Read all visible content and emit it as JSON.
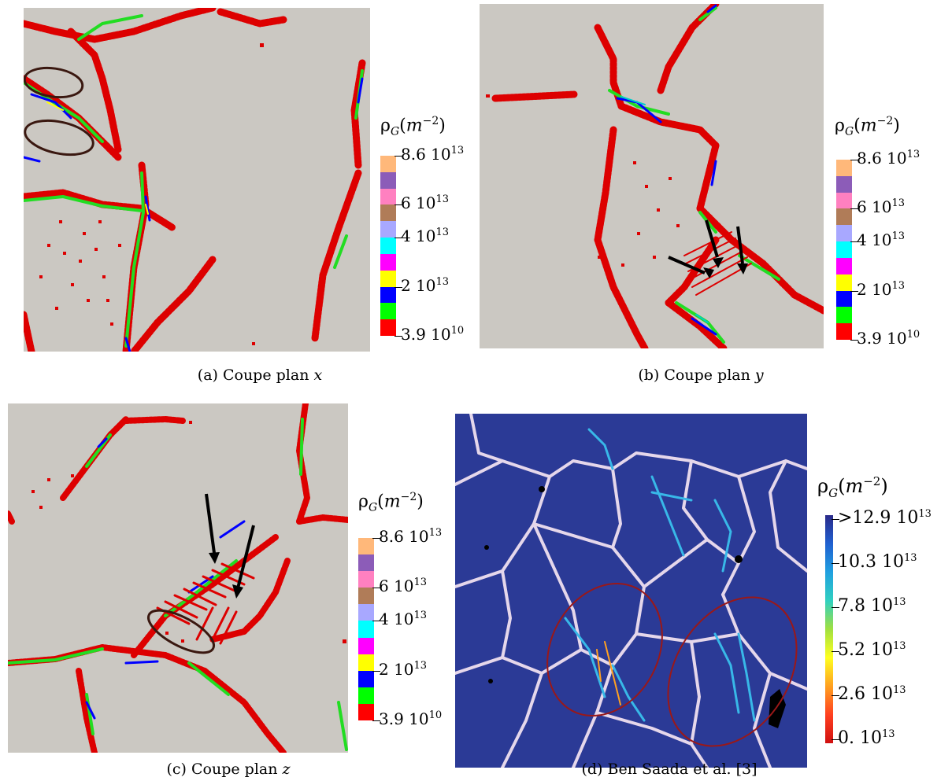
{
  "figure": {
    "unit_symbol": "ρ",
    "unit_subscript": "G",
    "unit_paren_open": "(",
    "unit_m": "m",
    "unit_exp": "−2",
    "unit_paren_close": ")",
    "panels": [
      {
        "id": "a",
        "caption_prefix": "(a)  Coupe plan ",
        "caption_var": "x",
        "colorbar": {
          "colors": [
            "#ffb87a",
            "#8c5cb8",
            "#ff80c0",
            "#b07c58",
            "#a8a8ff",
            "#00ffff",
            "#ff00ff",
            "#ffff00",
            "#0000ff",
            "#00ff00",
            "#ff0000"
          ],
          "ticks": [
            {
              "mantissa": "8.6 10",
              "exp": "13"
            },
            {
              "mantissa": "6 10",
              "exp": "13"
            },
            {
              "mantissa": "4 10",
              "exp": "13"
            },
            {
              "mantissa": "2 10",
              "exp": "13"
            },
            {
              "mantissa": "3.9 10",
              "exp": "10"
            }
          ]
        }
      },
      {
        "id": "b",
        "caption_prefix": "(b)  Coupe plan ",
        "caption_var": "y",
        "colorbar": {
          "colors": [
            "#ffb87a",
            "#8c5cb8",
            "#ff80c0",
            "#b07c58",
            "#a8a8ff",
            "#00ffff",
            "#ff00ff",
            "#ffff00",
            "#0000ff",
            "#00ff00",
            "#ff0000"
          ],
          "ticks": [
            {
              "mantissa": "8.6 10",
              "exp": "13"
            },
            {
              "mantissa": "6 10",
              "exp": "13"
            },
            {
              "mantissa": "4 10",
              "exp": "13"
            },
            {
              "mantissa": "2 10",
              "exp": "13"
            },
            {
              "mantissa": "3.9 10",
              "exp": "10"
            }
          ]
        }
      },
      {
        "id": "c",
        "caption_prefix": "(c)  Coupe plan ",
        "caption_var": "z",
        "colorbar": {
          "colors": [
            "#ffb87a",
            "#8c5cb8",
            "#ff80c0",
            "#b07c58",
            "#a8a8ff",
            "#00ffff",
            "#ff00ff",
            "#ffff00",
            "#0000ff",
            "#00ff00",
            "#ff0000"
          ],
          "ticks": [
            {
              "mantissa": "8.6 10",
              "exp": "13"
            },
            {
              "mantissa": "6 10",
              "exp": "13"
            },
            {
              "mantissa": "4 10",
              "exp": "13"
            },
            {
              "mantissa": "2 10",
              "exp": "13"
            },
            {
              "mantissa": "3.9 10",
              "exp": "10"
            }
          ]
        }
      },
      {
        "id": "d",
        "caption_prefix": "(d)  Ben Saada et al. [3]",
        "caption_var": "",
        "colorbar": {
          "gradient": [
            "#2a2a8a",
            "#2060d0",
            "#20a0e0",
            "#30d0c0",
            "#a0e040",
            "#ffff20",
            "#ffa020",
            "#ff4020",
            "#d01010"
          ],
          "ticks": [
            {
              "mantissa": ">12.9 10",
              "exp": "13"
            },
            {
              "mantissa": "10.3 10",
              "exp": "13"
            },
            {
              "mantissa": "7.8 10",
              "exp": "13"
            },
            {
              "mantissa": "5.2 10",
              "exp": "13"
            },
            {
              "mantissa": "2.6 10",
              "exp": "13"
            },
            {
              "mantissa": "0. 10",
              "exp": "13"
            }
          ]
        }
      }
    ]
  }
}
